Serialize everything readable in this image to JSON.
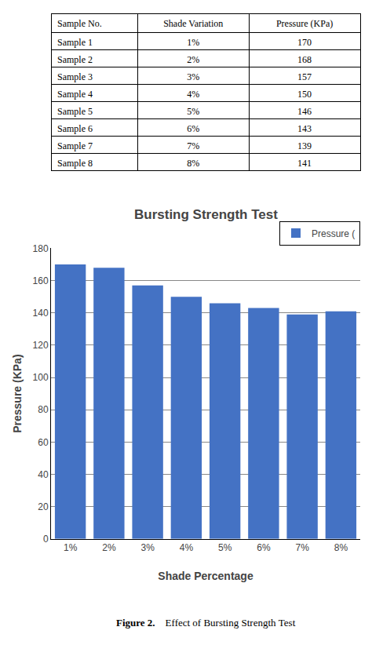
{
  "chart_data": {
    "type": "bar",
    "title": "Bursting Strength Test",
    "xlabel": "Shade Percentage",
    "ylabel": "Pressure (KPa)",
    "categories": [
      "1%",
      "2%",
      "3%",
      "4%",
      "5%",
      "6%",
      "7%",
      "8%"
    ],
    "series": [
      {
        "name": "Pressure (",
        "color": "#4472C4",
        "values": [
          170,
          168,
          157,
          150,
          146,
          143,
          139,
          141
        ]
      }
    ],
    "ylim": [
      0,
      180
    ],
    "yticks": [
      0,
      20,
      40,
      60,
      80,
      100,
      120,
      140,
      160,
      180
    ],
    "grid": true,
    "legend": "upper right"
  },
  "table": {
    "headers": [
      "Sample No.",
      "Shade Variation",
      "Pressure (KPa)"
    ],
    "rows": [
      [
        "Sample 1",
        "1%",
        "170"
      ],
      [
        "Sample 2",
        "2%",
        "168"
      ],
      [
        "Sample 3",
        "3%",
        "157"
      ],
      [
        "Sample 4",
        "4%",
        "150"
      ],
      [
        "Sample 5",
        "5%",
        "146"
      ],
      [
        "Sample 6",
        "6%",
        "143"
      ],
      [
        "Sample 7",
        "7%",
        "139"
      ],
      [
        "Sample 8",
        "8%",
        "141"
      ]
    ]
  },
  "caption": {
    "bold": "Figure 2.",
    "text": "    Effect of Bursting Strength Test"
  }
}
